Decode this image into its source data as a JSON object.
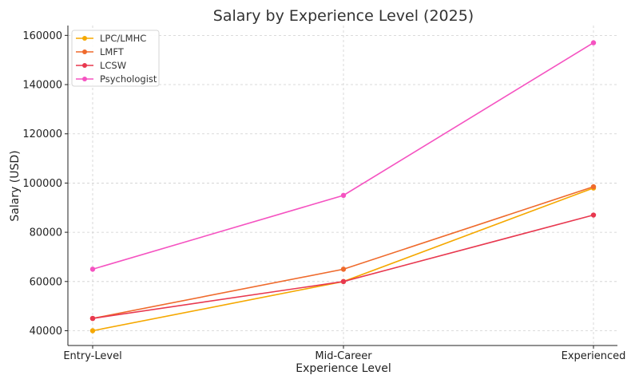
{
  "chart_data": {
    "type": "line",
    "title": "Salary by Experience Level (2025)",
    "xlabel": "Experience Level",
    "ylabel": "Salary (USD)",
    "categories": [
      "Entry-Level",
      "Mid-Career",
      "Experienced"
    ],
    "ylim": [
      34000,
      164000
    ],
    "yticks": [
      40000,
      60000,
      80000,
      100000,
      120000,
      140000,
      160000
    ],
    "grid": true,
    "legend_position": "top-left",
    "series": [
      {
        "name": "LPC/LMHC",
        "color": "#f5a800",
        "values": [
          40000,
          60000,
          98000
        ]
      },
      {
        "name": "LMFT",
        "color": "#ef6a2c",
        "values": [
          45000,
          65000,
          98500
        ]
      },
      {
        "name": "LCSW",
        "color": "#e8384f",
        "values": [
          45000,
          60000,
          87000
        ]
      },
      {
        "name": "Psychologist",
        "color": "#f553c1",
        "values": [
          65000,
          95000,
          157000
        ]
      }
    ]
  }
}
